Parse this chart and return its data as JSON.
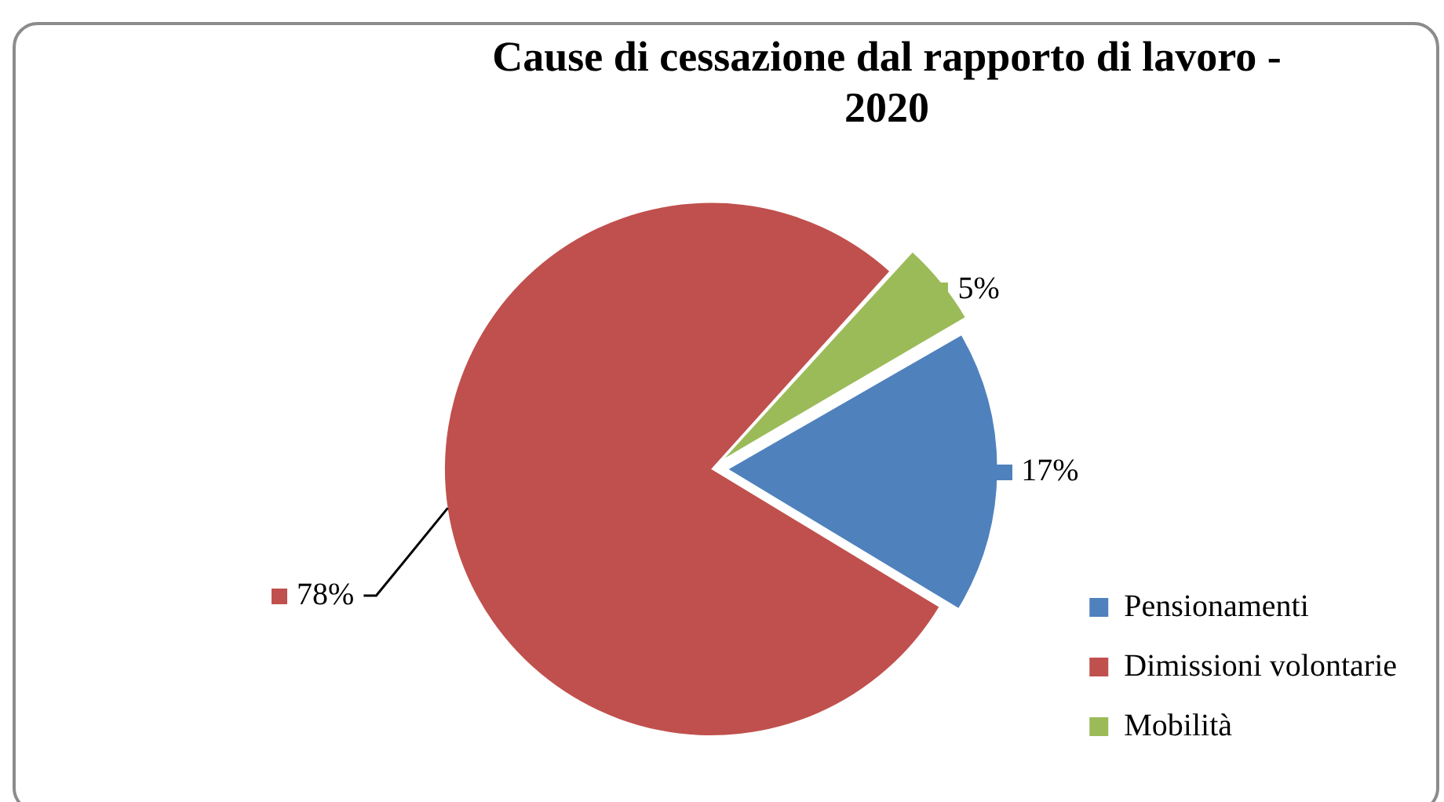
{
  "chart_data": {
    "type": "pie",
    "title": "Cause di cessazione dal rapporto di lavoro - 2020",
    "categories": [
      "Pensionamenti",
      "Dimissioni volontarie",
      "Mobilità"
    ],
    "values": [
      17,
      78,
      5
    ],
    "colors": [
      "#4f81bd",
      "#c0504d",
      "#9bbb59"
    ],
    "value_labels": [
      "17%",
      "78%",
      "5%"
    ],
    "legend": "bottom right"
  }
}
